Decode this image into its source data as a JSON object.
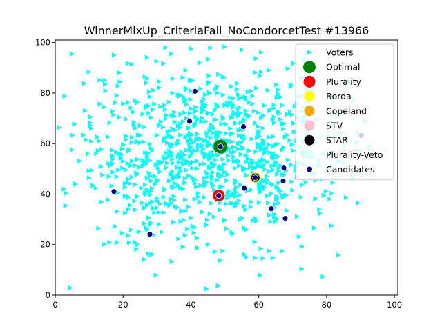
{
  "chart_data": {
    "type": "scatter",
    "title": "WinnerMixUp_CriteriaFail_NoCondorcetTest #13966",
    "xlabel": "",
    "ylabel": "",
    "xlim": [
      0,
      101
    ],
    "ylim": [
      0,
      101
    ],
    "x_ticks": [
      "0",
      "20",
      "40",
      "60",
      "80",
      "100"
    ],
    "y_ticks": [
      "0",
      "20",
      "40",
      "60",
      "80",
      "100"
    ],
    "grid": false,
    "legend_position": "top-right",
    "legend": [
      "Voters",
      "Optimal",
      "Plurality",
      "Borda",
      "Copeland",
      "STV",
      "STAR",
      "Plurality-Veto",
      "Candidates"
    ],
    "series": [
      {
        "name": "Voters",
        "marker": "triangle-right",
        "color": "#00ffff",
        "points": "approximately 1000 voter points clustered around (45, 55), spread roughly 0-100 on both axes"
      },
      {
        "name": "Optimal",
        "marker": "circle-large",
        "color": "#008000",
        "points": [
          [
            48.7,
            58.8
          ]
        ]
      },
      {
        "name": "Plurality",
        "marker": "circle-large",
        "color": "#ff0000",
        "points": [
          [
            48.2,
            39.4
          ]
        ]
      },
      {
        "name": "Borda",
        "marker": "circle-large",
        "color": "#ffff00",
        "points": [
          [
            59.0,
            46.5
          ]
        ]
      },
      {
        "name": "Copeland",
        "marker": "circle-large",
        "color": "#ffa500",
        "points": [
          [
            59.0,
            46.5
          ]
        ]
      },
      {
        "name": "STV",
        "marker": "circle-large",
        "color": "#ffc0cb",
        "points": [
          [
            59.0,
            46.5
          ]
        ]
      },
      {
        "name": "STAR",
        "marker": "circle-large",
        "color": "#000000",
        "points": [
          [
            59.0,
            46.5
          ]
        ]
      },
      {
        "name": "Plurality-Veto",
        "marker": "circle-large",
        "color": "#e0ffff",
        "points": [
          [
            90.2,
            63.2
          ]
        ]
      },
      {
        "name": "Candidates",
        "marker": "circle-small",
        "color": "#000080",
        "points": [
          [
            41.2,
            80.7
          ],
          [
            39.6,
            68.8
          ],
          [
            55.5,
            66.7
          ],
          [
            48.7,
            58.8
          ],
          [
            67.4,
            50.3
          ],
          [
            59.0,
            46.5
          ],
          [
            67.2,
            45.2
          ],
          [
            55.7,
            42.3
          ],
          [
            17.3,
            41.0
          ],
          [
            48.2,
            39.4
          ],
          [
            63.7,
            34.2
          ],
          [
            67.8,
            30.4
          ],
          [
            27.9,
            24.1
          ],
          [
            90.2,
            63.2
          ]
        ]
      }
    ]
  }
}
